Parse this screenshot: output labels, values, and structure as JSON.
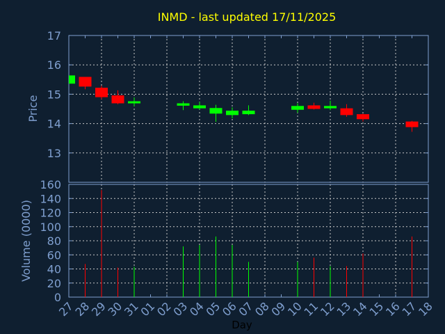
{
  "chart_data": [
    {
      "type": "candlestick",
      "title": "INMD - last updated 17/11/2025",
      "ylabel": "Price",
      "ylim": [
        13,
        17
      ],
      "yticks": [
        "13",
        "14",
        "15",
        "16",
        "17"
      ],
      "grid": true,
      "x": [
        "27",
        "28",
        "29",
        "30",
        "31",
        "01",
        "02",
        "03",
        "04",
        "05",
        "06",
        "07",
        "08",
        "09",
        "10",
        "11",
        "12",
        "13",
        "14",
        "15",
        "16",
        "17",
        "18"
      ],
      "candles": [
        {
          "day": "27",
          "open": 15.36,
          "high": 15.64,
          "low": 15.36,
          "close": 15.64
        },
        {
          "day": "28",
          "open": 15.59,
          "high": 15.59,
          "low": 15.17,
          "close": 15.26
        },
        {
          "day": "29",
          "open": 15.22,
          "high": 15.29,
          "low": 14.83,
          "close": 14.9
        },
        {
          "day": "30",
          "open": 14.96,
          "high": 15.13,
          "low": 14.66,
          "close": 14.69
        },
        {
          "day": "31",
          "open": 14.69,
          "high": 14.89,
          "low": 14.59,
          "close": 14.76
        },
        {
          "day": "03",
          "open": 14.61,
          "high": 14.76,
          "low": 14.46,
          "close": 14.69
        },
        {
          "day": "04",
          "open": 14.52,
          "high": 14.74,
          "low": 14.48,
          "close": 14.62
        },
        {
          "day": "05",
          "open": 14.34,
          "high": 14.64,
          "low": 14.06,
          "close": 14.53
        },
        {
          "day": "06",
          "open": 14.29,
          "high": 14.55,
          "low": 14.18,
          "close": 14.44
        },
        {
          "day": "07",
          "open": 14.32,
          "high": 14.62,
          "low": 14.29,
          "close": 14.44
        },
        {
          "day": "10",
          "open": 14.47,
          "high": 14.69,
          "low": 14.37,
          "close": 14.6
        },
        {
          "day": "11",
          "open": 14.62,
          "high": 14.71,
          "low": 14.48,
          "close": 14.5
        },
        {
          "day": "12",
          "open": 14.52,
          "high": 14.78,
          "low": 14.46,
          "close": 14.6
        },
        {
          "day": "13",
          "open": 14.52,
          "high": 14.66,
          "low": 14.23,
          "close": 14.29
        },
        {
          "day": "14",
          "open": 14.32,
          "high": 14.34,
          "low": 14.07,
          "close": 14.15
        },
        {
          "day": "17",
          "open": 14.07,
          "high": 14.09,
          "low": 13.72,
          "close": 13.88
        }
      ]
    },
    {
      "type": "bar",
      "ylabel": "Volume (0000)",
      "xlabel": "Day",
      "ylim": [
        0,
        160
      ],
      "yticks": [
        "0",
        "20",
        "40",
        "60",
        "80",
        "100",
        "120",
        "140",
        "160"
      ],
      "grid": true,
      "bars": [
        {
          "day": "28",
          "value": 47,
          "direction": "down"
        },
        {
          "day": "29",
          "value": 152,
          "direction": "down"
        },
        {
          "day": "30",
          "value": 42,
          "direction": "down"
        },
        {
          "day": "31",
          "value": 43,
          "direction": "up"
        },
        {
          "day": "03",
          "value": 72,
          "direction": "up"
        },
        {
          "day": "04",
          "value": 74,
          "direction": "up"
        },
        {
          "day": "05",
          "value": 86,
          "direction": "up"
        },
        {
          "day": "06",
          "value": 74,
          "direction": "up"
        },
        {
          "day": "07",
          "value": 50,
          "direction": "up"
        },
        {
          "day": "10",
          "value": 50,
          "direction": "up"
        },
        {
          "day": "11",
          "value": 56,
          "direction": "down"
        },
        {
          "day": "12",
          "value": 44,
          "direction": "up"
        },
        {
          "day": "13",
          "value": 44,
          "direction": "down"
        },
        {
          "day": "14",
          "value": 62,
          "direction": "down"
        },
        {
          "day": "17",
          "value": 86,
          "direction": "down"
        }
      ]
    }
  ],
  "colors": {
    "background": "#0f1f30",
    "axis": "#7f9fcf",
    "grid": "#c8c8c8",
    "title": "#ffff00",
    "up": "#00ff00",
    "down": "#ff0000",
    "xlabel": "#000000"
  }
}
